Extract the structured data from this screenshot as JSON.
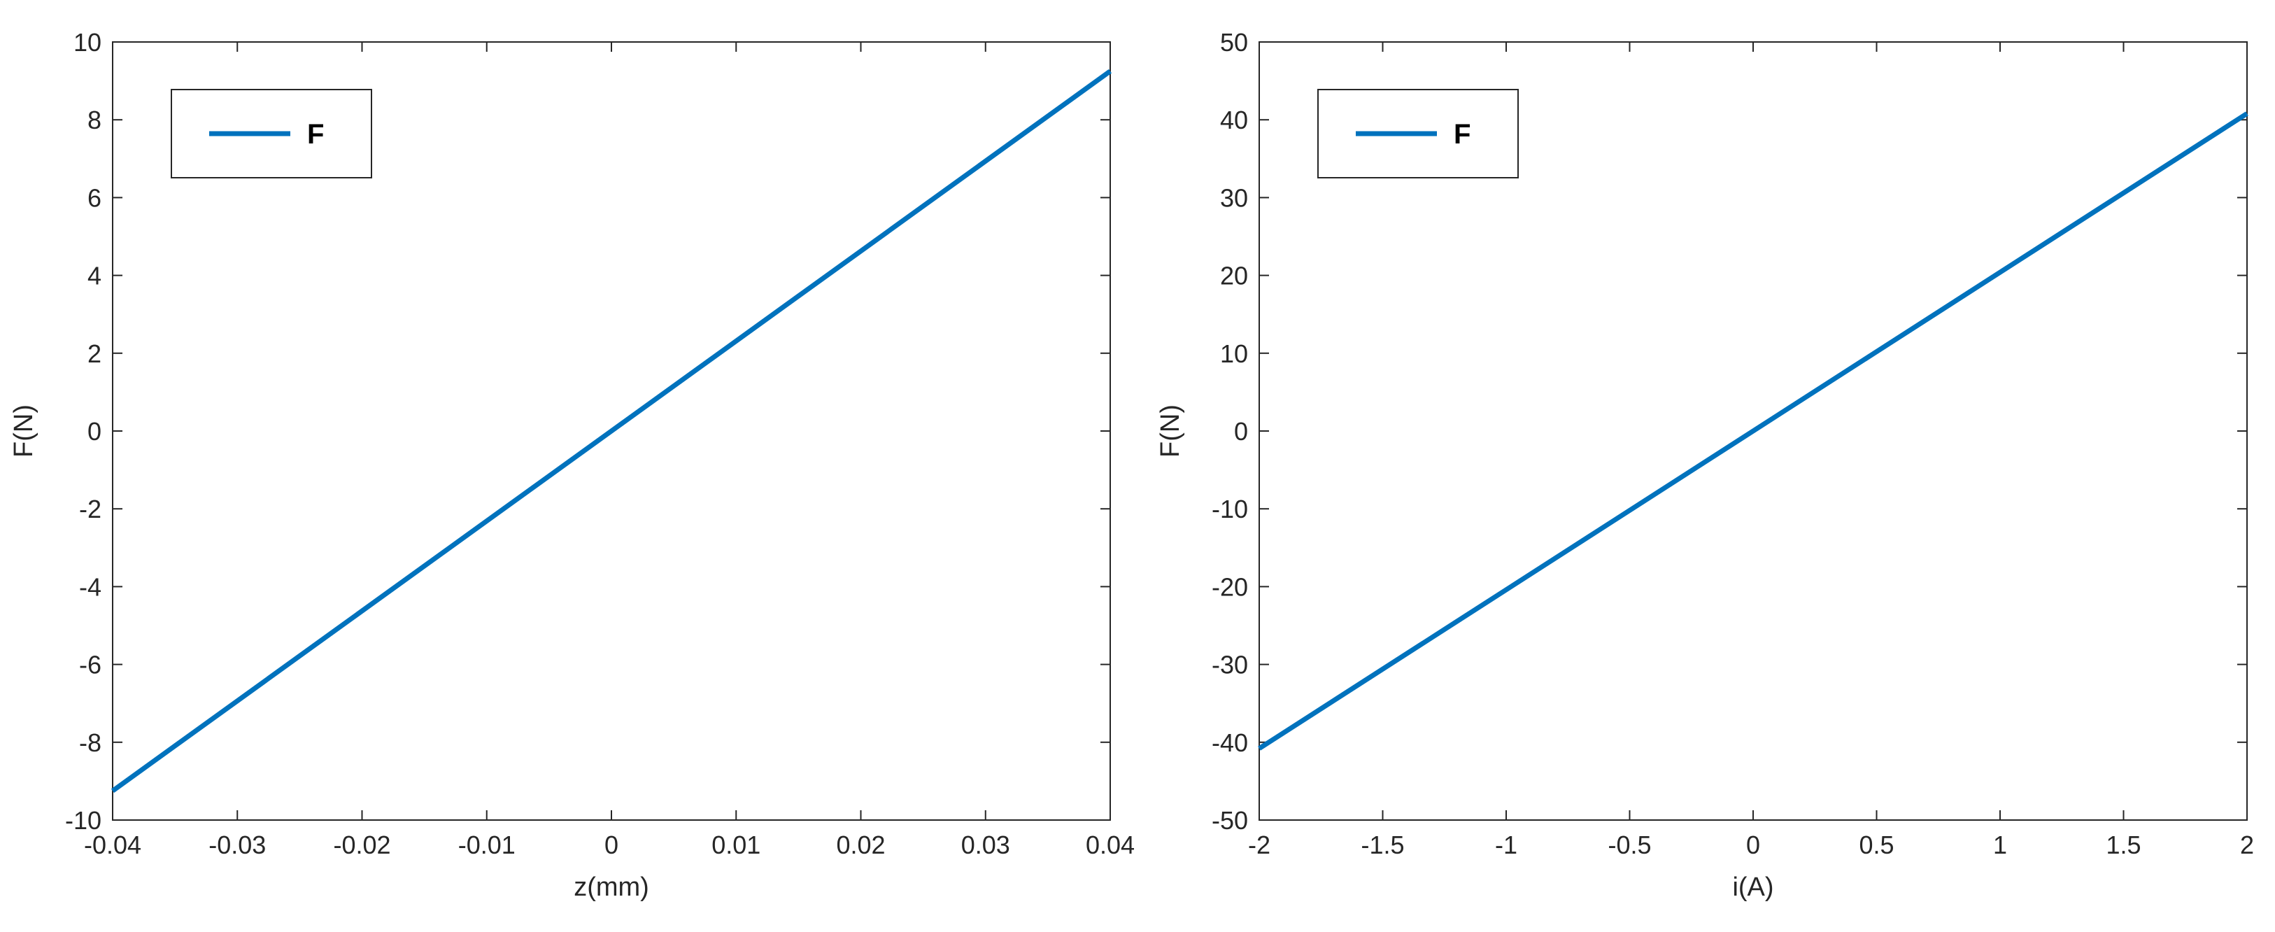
{
  "chart_data": [
    {
      "type": "line",
      "xlabel": "z(mm)",
      "ylabel": "F(N)",
      "xlim": [
        -0.04,
        0.04
      ],
      "ylim": [
        -10,
        10
      ],
      "xticks": [
        "-0.04",
        "-0.03",
        "-0.02",
        "-0.01",
        "0",
        "0.01",
        "0.02",
        "0.03",
        "0.04"
      ],
      "yticks": [
        "-10",
        "-8",
        "-6",
        "-4",
        "-2",
        "0",
        "2",
        "4",
        "6",
        "8",
        "10"
      ],
      "legend_position": "top-left",
      "grid": false,
      "series": [
        {
          "name": "F",
          "color": "#0072BD",
          "x": [
            -0.04,
            0.04
          ],
          "y": [
            -9.25,
            9.25
          ]
        }
      ]
    },
    {
      "type": "line",
      "xlabel": "i(A)",
      "ylabel": "F(N)",
      "xlim": [
        -2,
        2
      ],
      "ylim": [
        -50,
        50
      ],
      "xticks": [
        "-2",
        "-1.5",
        "-1",
        "-0.5",
        "0",
        "0.5",
        "1",
        "1.5",
        "2"
      ],
      "yticks": [
        "-50",
        "-40",
        "-30",
        "-20",
        "-10",
        "0",
        "10",
        "20",
        "30",
        "40",
        "50"
      ],
      "legend_position": "top-left",
      "grid": false,
      "series": [
        {
          "name": "F",
          "color": "#0072BD",
          "x": [
            -2,
            2
          ],
          "y": [
            -40.8,
            40.8
          ]
        }
      ]
    }
  ]
}
